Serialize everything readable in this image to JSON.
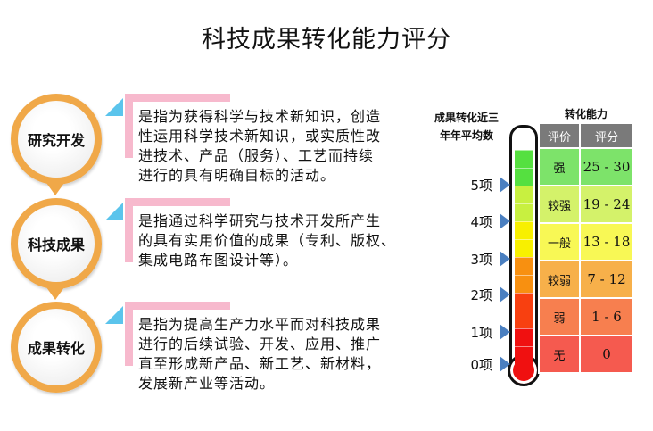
{
  "title": "科技成果转化能力评分",
  "stages": [
    {
      "name": "研究开发",
      "lines": [
        "是指为获得科学与技术新知识，创造",
        "性运用科学技术新知识，或实质性改",
        "进技术、产品（服务）、工艺而持续",
        "进行的具有明确目标的活动。"
      ]
    },
    {
      "name": "科技成果",
      "lines": [
        "是指通过科学研究与技术开发所产生",
        "的具有实用价值的成果（专利、版权、",
        "集成电路布图设计等）。"
      ]
    },
    {
      "name": "成果转化",
      "lines": [
        "是指为提高生产力水平而对科技成果",
        "进行的后续试验、开发、应用、推广",
        "直至形成新产品、新工艺、新材料，",
        "发展新产业等活动。"
      ]
    }
  ],
  "thermometer": {
    "title_lines": [
      "成果转化近三",
      "年年平均数"
    ],
    "labels": [
      "5项",
      "4项",
      "3项",
      "2项",
      "1项",
      "0项"
    ]
  },
  "table": {
    "title": "转化能力",
    "headers": [
      "评价",
      "评分"
    ],
    "rows": [
      {
        "rating": "强",
        "score": "25 - 30",
        "color": "#7de36a"
      },
      {
        "rating": "较强",
        "score": "19 - 24",
        "color": "#d4f26a"
      },
      {
        "rating": "一般",
        "score": "13 - 18",
        "color": "#f8f855"
      },
      {
        "rating": "较弱",
        "score": "7 - 12",
        "color": "#f7b04a"
      },
      {
        "rating": "弱",
        "score": "1 - 6",
        "color": "#f77f4f"
      },
      {
        "rating": "无",
        "score": "0",
        "color": "#f55a4f"
      }
    ]
  },
  "segment_colors": [
    "#55e040",
    "#55e040",
    "#c8f040",
    "#c8f040",
    "#f8f000",
    "#f8f000",
    "#f89010",
    "#f89010",
    "#f84010",
    "#f84010",
    "#f01010",
    "#f01010"
  ]
}
